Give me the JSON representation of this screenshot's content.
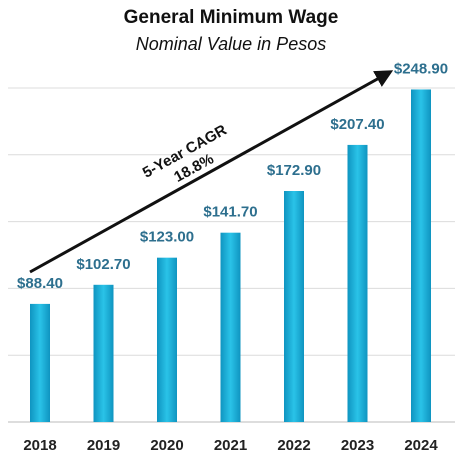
{
  "chart_data": {
    "type": "bar",
    "title": "General Minimum Wage",
    "subtitle": "Nominal Value in Pesos",
    "categories": [
      "2018",
      "2019",
      "2020",
      "2021",
      "2022",
      "2023",
      "2024"
    ],
    "values": [
      88.4,
      102.7,
      123.0,
      141.7,
      172.9,
      207.4,
      248.9
    ],
    "value_labels": [
      "$88.40",
      "$102.70",
      "$123.00",
      "$141.70",
      "$172.90",
      "$207.40",
      "$248.90"
    ],
    "color": "#1ab4dc",
    "ylim": [
      0,
      250
    ],
    "yticks": [
      0,
      50,
      100,
      150,
      200,
      250
    ],
    "grid": true,
    "annotations": [
      "5-Year CAGR",
      "18.8%"
    ]
  }
}
